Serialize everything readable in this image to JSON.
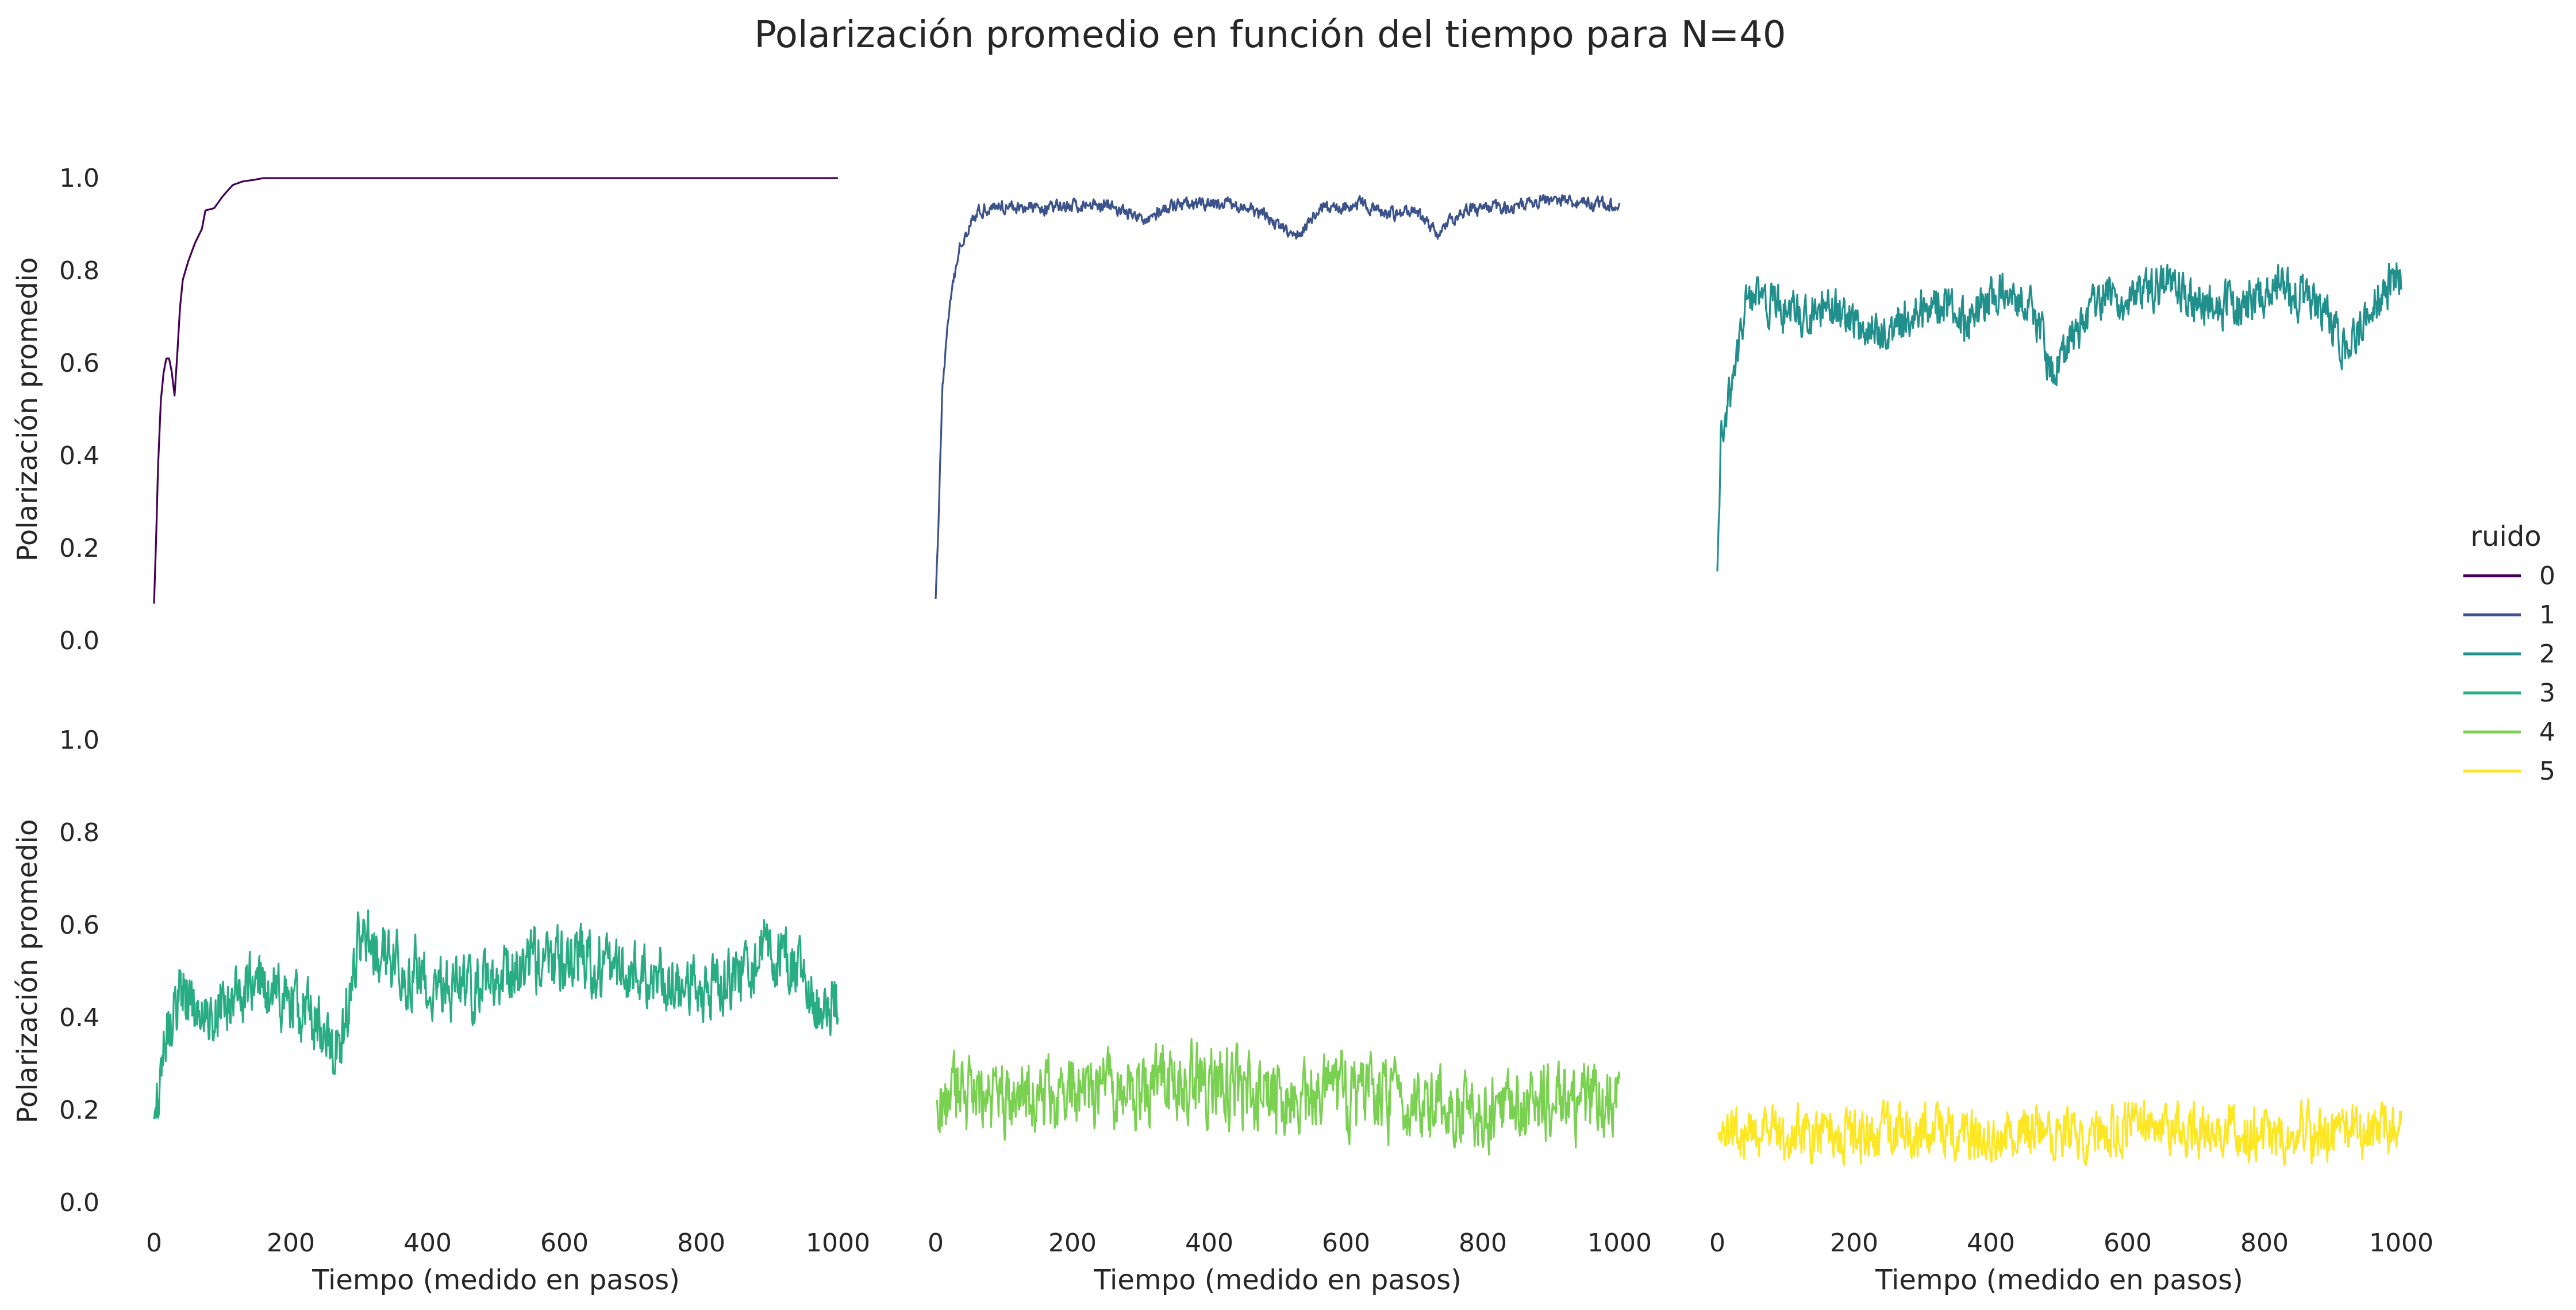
{
  "chart_data": {
    "type": "line",
    "title": "Polarización promedio en función del tiempo para N=40",
    "xlabel": "Tiempo (medido en pasos)",
    "ylabel": "Polarización promedio",
    "xlim": [
      0,
      1000
    ],
    "ylim": [
      0.0,
      1.0
    ],
    "xticks": [
      "0",
      "200",
      "400",
      "600",
      "800",
      "1000"
    ],
    "yticks": [
      "0.0",
      "0.2",
      "0.4",
      "0.6",
      "0.8",
      "1.0"
    ],
    "grid": false,
    "layout": "facet grid, 2 rows x 3 columns, one panel per noise level",
    "legend": {
      "title": "ruido",
      "placement": "right",
      "entries": [
        "0",
        "1",
        "2",
        "3",
        "4",
        "5"
      ]
    },
    "series": [
      {
        "name": "0",
        "color": "#440154",
        "noise_amp": 0.0,
        "points": [
          [
            0,
            0.08
          ],
          [
            3,
            0.22
          ],
          [
            6,
            0.38
          ],
          [
            10,
            0.52
          ],
          [
            14,
            0.58
          ],
          [
            18,
            0.61
          ],
          [
            22,
            0.61
          ],
          [
            26,
            0.58
          ],
          [
            30,
            0.53
          ],
          [
            34,
            0.62
          ],
          [
            38,
            0.72
          ],
          [
            42,
            0.78
          ],
          [
            50,
            0.82
          ],
          [
            60,
            0.86
          ],
          [
            70,
            0.89
          ],
          [
            75,
            0.93
          ],
          [
            88,
            0.935
          ],
          [
            100,
            0.96
          ],
          [
            115,
            0.985
          ],
          [
            130,
            0.993
          ],
          [
            145,
            0.996
          ],
          [
            160,
            1.0
          ],
          [
            1000,
            1.0
          ]
        ]
      },
      {
        "name": "1",
        "color": "#3b528b",
        "noise_amp": 0.012,
        "points": [
          [
            0,
            0.09
          ],
          [
            5,
            0.3
          ],
          [
            10,
            0.55
          ],
          [
            20,
            0.72
          ],
          [
            35,
            0.85
          ],
          [
            55,
            0.92
          ],
          [
            80,
            0.94
          ],
          [
            150,
            0.935
          ],
          [
            250,
            0.945
          ],
          [
            300,
            0.91
          ],
          [
            350,
            0.94
          ],
          [
            430,
            0.945
          ],
          [
            480,
            0.92
          ],
          [
            525,
            0.87
          ],
          [
            560,
            0.93
          ],
          [
            620,
            0.945
          ],
          [
            660,
            0.92
          ],
          [
            700,
            0.93
          ],
          [
            735,
            0.88
          ],
          [
            770,
            0.93
          ],
          [
            850,
            0.94
          ],
          [
            900,
            0.955
          ],
          [
            960,
            0.945
          ],
          [
            1000,
            0.94
          ]
        ]
      },
      {
        "name": "2",
        "color": "#21908d",
        "noise_amp": 0.04,
        "points": [
          [
            0,
            0.15
          ],
          [
            5,
            0.42
          ],
          [
            15,
            0.5
          ],
          [
            30,
            0.62
          ],
          [
            45,
            0.75
          ],
          [
            70,
            0.73
          ],
          [
            120,
            0.7
          ],
          [
            170,
            0.71
          ],
          [
            240,
            0.66
          ],
          [
            290,
            0.71
          ],
          [
            330,
            0.74
          ],
          [
            360,
            0.69
          ],
          [
            420,
            0.76
          ],
          [
            460,
            0.73
          ],
          [
            490,
            0.58
          ],
          [
            530,
            0.68
          ],
          [
            560,
            0.75
          ],
          [
            600,
            0.73
          ],
          [
            660,
            0.77
          ],
          [
            700,
            0.73
          ],
          [
            760,
            0.72
          ],
          [
            820,
            0.77
          ],
          [
            880,
            0.72
          ],
          [
            920,
            0.62
          ],
          [
            960,
            0.73
          ],
          [
            1000,
            0.8
          ]
        ]
      },
      {
        "name": "3",
        "color": "#27ad81",
        "noise_amp": 0.06,
        "points": [
          [
            0,
            0.18
          ],
          [
            15,
            0.36
          ],
          [
            40,
            0.46
          ],
          [
            70,
            0.4
          ],
          [
            100,
            0.43
          ],
          [
            140,
            0.48
          ],
          [
            190,
            0.44
          ],
          [
            230,
            0.4
          ],
          [
            270,
            0.32
          ],
          [
            300,
            0.58
          ],
          [
            350,
            0.52
          ],
          [
            400,
            0.48
          ],
          [
            450,
            0.46
          ],
          [
            500,
            0.5
          ],
          [
            560,
            0.52
          ],
          [
            620,
            0.53
          ],
          [
            680,
            0.5
          ],
          [
            740,
            0.49
          ],
          [
            800,
            0.44
          ],
          [
            860,
            0.51
          ],
          [
            900,
            0.54
          ],
          [
            940,
            0.5
          ],
          [
            970,
            0.42
          ],
          [
            1000,
            0.45
          ]
        ]
      },
      {
        "name": "4",
        "color": "#7ad151",
        "noise_amp": 0.07,
        "points": [
          [
            0,
            0.22
          ],
          [
            100,
            0.22
          ],
          [
            200,
            0.24
          ],
          [
            300,
            0.25
          ],
          [
            400,
            0.26
          ],
          [
            500,
            0.22
          ],
          [
            600,
            0.23
          ],
          [
            700,
            0.22
          ],
          [
            800,
            0.2
          ],
          [
            900,
            0.21
          ],
          [
            1000,
            0.23
          ]
        ]
      },
      {
        "name": "5",
        "color": "#fde725",
        "noise_amp": 0.05,
        "points": [
          [
            0,
            0.15
          ],
          [
            200,
            0.15
          ],
          [
            400,
            0.15
          ],
          [
            600,
            0.16
          ],
          [
            800,
            0.15
          ],
          [
            1000,
            0.15
          ]
        ]
      }
    ]
  }
}
